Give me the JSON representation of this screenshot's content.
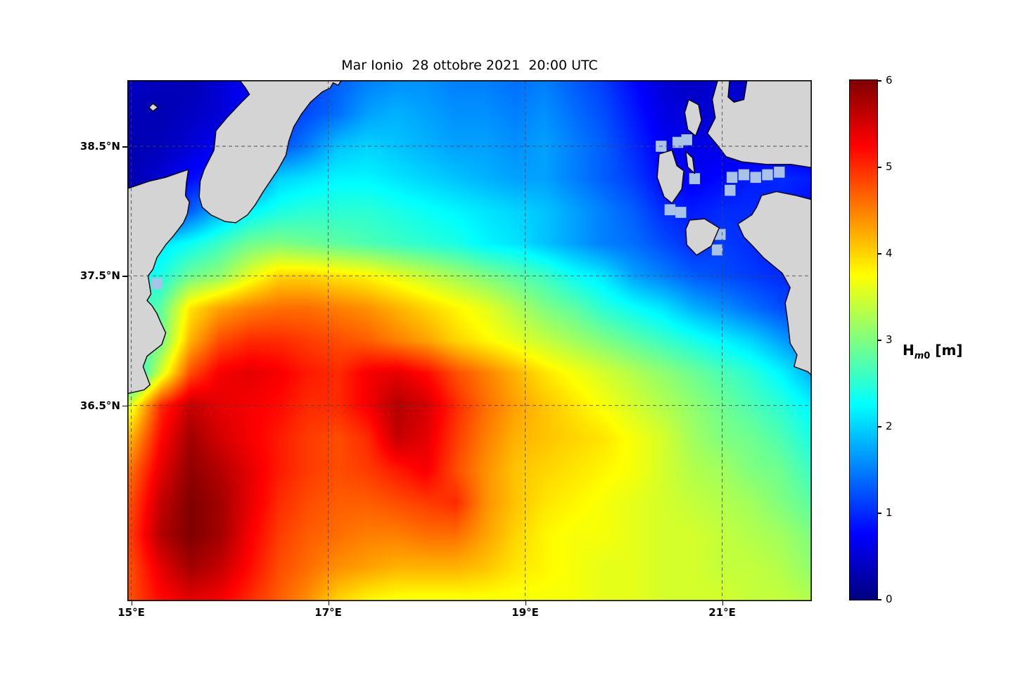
{
  "title": "Mar Ionio  28 ottobre 2021  20:00 UTC",
  "colorbar": {
    "symbol": "H",
    "sub_italic": "m",
    "sub_normal": "0",
    "unit": " [m]",
    "min": 0,
    "max": 6,
    "ticks": [
      0,
      1,
      2,
      3,
      4,
      5,
      6
    ]
  },
  "axes": {
    "x_ticks": [
      {
        "value": 15,
        "label": "15°E"
      },
      {
        "value": 17,
        "label": "17°E"
      },
      {
        "value": 19,
        "label": "19°E"
      },
      {
        "value": 21,
        "label": "21°E"
      }
    ],
    "y_ticks": [
      {
        "value": 38.5,
        "label": "38.5°N"
      },
      {
        "value": 37.5,
        "label": "37.5°N"
      },
      {
        "value": 36.5,
        "label": "36.5°N"
      }
    ],
    "lon_range": [
      14.96,
      21.91
    ],
    "lat_range": [
      39.01,
      34.99
    ],
    "grid_on": true
  },
  "chart_data": {
    "type": "heatmap",
    "title": "Mar Ionio  28 ottobre 2021  20:00 UTC",
    "variable": "Hm0",
    "units": "m",
    "colormap": "jet",
    "vmin": 0,
    "vmax": 6,
    "lon": [
      15.0,
      15.3,
      15.6,
      15.9,
      16.2,
      16.5,
      16.8,
      17.1,
      17.4,
      17.7,
      18.0,
      18.3,
      18.6,
      18.9,
      19.2,
      19.5,
      19.8,
      20.1,
      20.4,
      20.7,
      21.0,
      21.3,
      21.6,
      21.9
    ],
    "lat": [
      39.0,
      38.75,
      38.5,
      38.25,
      38.0,
      37.75,
      37.5,
      37.25,
      37.0,
      36.75,
      36.5,
      36.25,
      36.0,
      35.75,
      35.5,
      35.25,
      35.0
    ],
    "values": [
      [
        0.4,
        0.35,
        0.3,
        0.5,
        0.7,
        0.9,
        1.1,
        1.3,
        1.5,
        1.6,
        1.6,
        1.5,
        1.5,
        1.4,
        1.5,
        1.3,
        1.1,
        0.8,
        0.5,
        0.4,
        0.5,
        0.4,
        0.5,
        0.5
      ],
      [
        0.35,
        0.3,
        0.4,
        0.5,
        0.8,
        1.0,
        1.2,
        1.4,
        1.7,
        1.8,
        1.7,
        1.6,
        1.6,
        1.5,
        1.6,
        1.4,
        1.2,
        0.9,
        0.6,
        0.5,
        0.5,
        0.5,
        0.5,
        0.5
      ],
      [
        0.3,
        0.35,
        0.5,
        0.7,
        0.9,
        1.2,
        1.5,
        1.9,
        2.0,
        1.9,
        1.8,
        1.7,
        1.7,
        1.6,
        1.7,
        1.5,
        1.3,
        1.0,
        0.7,
        0.6,
        0.6,
        0.6,
        0.6,
        0.6
      ],
      [
        0.3,
        0.5,
        0.8,
        1.0,
        1.4,
        2.0,
        2.1,
        2.2,
        2.2,
        2.1,
        2.0,
        1.9,
        1.8,
        1.7,
        1.7,
        1.5,
        1.3,
        1.1,
        0.8,
        0.7,
        0.8,
        0.9,
        1.0,
        0.9
      ],
      [
        0.3,
        0.6,
        1.3,
        1.8,
        2.2,
        2.4,
        2.5,
        2.5,
        2.5,
        2.4,
        2.3,
        2.2,
        2.1,
        2.0,
        1.9,
        1.7,
        1.5,
        1.3,
        1.0,
        0.9,
        1.0,
        1.0,
        0.9,
        0.8
      ],
      [
        1.8,
        2.1,
        2.3,
        2.6,
        2.9,
        3.0,
        2.9,
        2.8,
        2.7,
        2.6,
        2.5,
        2.4,
        2.2,
        2.1,
        1.9,
        1.7,
        1.5,
        1.4,
        1.2,
        1.0,
        1.1,
        1.0,
        0.9,
        0.9
      ],
      [
        2.2,
        2.4,
        2.9,
        3.1,
        3.6,
        4.0,
        4.0,
        3.9,
        3.8,
        3.6,
        3.4,
        3.2,
        3.0,
        2.8,
        2.6,
        2.3,
        2.1,
        1.7,
        1.5,
        1.3,
        1.2,
        1.1,
        1.0,
        1.0
      ],
      [
        2.5,
        2.8,
        3.9,
        4.3,
        4.5,
        4.6,
        4.6,
        4.5,
        4.4,
        4.2,
        4.0,
        3.8,
        3.6,
        3.3,
        3.0,
        2.8,
        2.5,
        2.3,
        2.1,
        1.8,
        1.6,
        1.4,
        1.2,
        1.1
      ],
      [
        2.6,
        2.9,
        4.2,
        4.8,
        5.0,
        5.0,
        4.9,
        4.8,
        4.7,
        4.5,
        4.3,
        4.0,
        3.8,
        3.6,
        3.4,
        3.2,
        3.0,
        2.8,
        2.6,
        2.4,
        2.2,
        2.0,
        1.7,
        1.4
      ],
      [
        2.0,
        3.5,
        4.8,
        5.3,
        5.4,
        5.3,
        5.1,
        5.0,
        5.3,
        5.4,
        5.2,
        4.8,
        4.5,
        4.2,
        3.9,
        3.7,
        3.5,
        3.3,
        3.1,
        2.9,
        2.7,
        2.5,
        2.2,
        1.8
      ],
      [
        3.6,
        5.0,
        5.6,
        5.4,
        5.3,
        5.2,
        5.0,
        5.0,
        5.3,
        5.7,
        5.5,
        5.0,
        4.6,
        4.3,
        4.1,
        3.9,
        3.7,
        3.5,
        3.3,
        3.1,
        2.9,
        2.7,
        2.5,
        2.2
      ],
      [
        4.2,
        5.2,
        5.8,
        5.5,
        5.3,
        5.1,
        4.9,
        4.8,
        5.0,
        5.6,
        5.4,
        4.9,
        4.5,
        4.2,
        4.1,
        4.0,
        3.9,
        3.7,
        3.5,
        3.2,
        3.0,
        2.9,
        2.7,
        2.4
      ],
      [
        4.6,
        5.4,
        5.9,
        5.7,
        5.4,
        5.1,
        4.9,
        4.8,
        4.9,
        5.1,
        5.3,
        4.8,
        4.4,
        4.1,
        4.0,
        3.9,
        3.8,
        3.7,
        3.5,
        3.3,
        3.2,
        3.0,
        2.9,
        2.6
      ],
      [
        4.8,
        5.6,
        6.0,
        5.8,
        5.4,
        5.0,
        4.8,
        4.7,
        4.7,
        4.8,
        4.9,
        5.0,
        4.4,
        4.1,
        3.9,
        3.8,
        3.7,
        3.6,
        3.5,
        3.4,
        3.3,
        3.2,
        3.0,
        2.8
      ],
      [
        4.9,
        5.7,
        6.0,
        5.8,
        5.3,
        4.9,
        4.7,
        4.6,
        4.5,
        4.5,
        4.6,
        4.6,
        4.3,
        4.0,
        3.8,
        3.7,
        3.7,
        3.6,
        3.5,
        3.5,
        3.4,
        3.3,
        3.2,
        3.0
      ],
      [
        4.8,
        5.4,
        5.8,
        5.6,
        5.2,
        4.8,
        4.6,
        4.4,
        4.3,
        4.2,
        4.2,
        4.2,
        4.1,
        3.9,
        3.8,
        3.7,
        3.6,
        3.6,
        3.5,
        3.5,
        3.4,
        3.4,
        3.3,
        3.1
      ],
      [
        4.8,
        5.2,
        5.4,
        5.3,
        5.0,
        4.7,
        4.4,
        4.0,
        3.8,
        3.7,
        3.7,
        3.7,
        3.7,
        3.7,
        3.7,
        3.7,
        3.6,
        3.6,
        3.5,
        3.5,
        3.5,
        3.4,
        3.4,
        3.3
      ]
    ]
  },
  "land": {
    "fill": "#d4d4d4",
    "coast_color": "#000000",
    "polygons": [
      {
        "name": "sicily",
        "points": [
          [
            14.95,
            38.17
          ],
          [
            15.18,
            38.23
          ],
          [
            15.35,
            38.26
          ],
          [
            15.5,
            38.3
          ],
          [
            15.58,
            38.32
          ],
          [
            15.56,
            38.22
          ],
          [
            15.55,
            38.12
          ],
          [
            15.59,
            38.07
          ],
          [
            15.57,
            37.98
          ],
          [
            15.53,
            37.91
          ],
          [
            15.43,
            37.81
          ],
          [
            15.35,
            37.74
          ],
          [
            15.26,
            37.64
          ],
          [
            15.22,
            37.55
          ],
          [
            15.17,
            37.5
          ],
          [
            15.2,
            37.36
          ],
          [
            15.16,
            37.31
          ],
          [
            15.21,
            37.27
          ],
          [
            15.26,
            37.21
          ],
          [
            15.3,
            37.14
          ],
          [
            15.35,
            37.06
          ],
          [
            15.31,
            36.97
          ],
          [
            15.16,
            36.88
          ],
          [
            15.12,
            36.8
          ],
          [
            15.19,
            36.66
          ],
          [
            15.13,
            36.62
          ],
          [
            14.95,
            36.59
          ]
        ]
      },
      {
        "name": "calabria",
        "points": [
          [
            16.06,
            39.05
          ],
          [
            16.16,
            38.95
          ],
          [
            16.2,
            38.9
          ],
          [
            16.12,
            38.84
          ],
          [
            15.97,
            38.72
          ],
          [
            15.86,
            38.62
          ],
          [
            15.84,
            38.47
          ],
          [
            15.74,
            38.32
          ],
          [
            15.7,
            38.23
          ],
          [
            15.69,
            38.11
          ],
          [
            15.72,
            38.03
          ],
          [
            15.81,
            37.97
          ],
          [
            15.95,
            37.92
          ],
          [
            16.06,
            37.91
          ],
          [
            16.18,
            37.97
          ],
          [
            16.26,
            38.05
          ],
          [
            16.34,
            38.15
          ],
          [
            16.49,
            38.32
          ],
          [
            16.57,
            38.43
          ],
          [
            16.6,
            38.54
          ],
          [
            16.65,
            38.65
          ],
          [
            16.73,
            38.75
          ],
          [
            16.82,
            38.84
          ],
          [
            16.94,
            38.92
          ],
          [
            17.02,
            38.95
          ],
          [
            17.05,
            38.99
          ],
          [
            17.1,
            38.97
          ],
          [
            17.17,
            39.05
          ]
        ]
      },
      {
        "name": "aeolian-islet",
        "points": [
          [
            15.18,
            38.8
          ],
          [
            15.22,
            38.83
          ],
          [
            15.27,
            38.8
          ],
          [
            15.22,
            38.77
          ]
        ]
      },
      {
        "name": "epirus-akarnania",
        "points": [
          [
            20.97,
            39.05
          ],
          [
            20.9,
            38.86
          ],
          [
            20.93,
            38.72
          ],
          [
            20.85,
            38.6
          ],
          [
            20.96,
            38.5
          ],
          [
            21.04,
            38.42
          ],
          [
            21.2,
            38.38
          ],
          [
            21.45,
            38.36
          ],
          [
            21.7,
            38.36
          ],
          [
            21.95,
            38.33
          ],
          [
            21.95,
            39.05
          ],
          [
            21.26,
            39.05
          ],
          [
            21.22,
            38.86
          ],
          [
            21.12,
            38.84
          ],
          [
            21.06,
            38.88
          ],
          [
            21.08,
            39.05
          ]
        ]
      },
      {
        "name": "lefkada",
        "points": [
          [
            20.66,
            38.86
          ],
          [
            20.76,
            38.82
          ],
          [
            20.79,
            38.7
          ],
          [
            20.73,
            38.58
          ],
          [
            20.65,
            38.63
          ],
          [
            20.62,
            38.76
          ]
        ]
      },
      {
        "name": "kefalonia",
        "points": [
          [
            20.36,
            38.44
          ],
          [
            20.49,
            38.47
          ],
          [
            20.54,
            38.35
          ],
          [
            20.61,
            38.31
          ],
          [
            20.59,
            38.17
          ],
          [
            20.49,
            38.06
          ],
          [
            20.41,
            38.11
          ],
          [
            20.34,
            38.26
          ]
        ]
      },
      {
        "name": "ithaca",
        "points": [
          [
            20.63,
            38.46
          ],
          [
            20.7,
            38.41
          ],
          [
            20.72,
            38.29
          ],
          [
            20.65,
            38.34
          ]
        ]
      },
      {
        "name": "zakynthos",
        "points": [
          [
            20.67,
            37.93
          ],
          [
            20.82,
            37.94
          ],
          [
            20.97,
            37.87
          ],
          [
            20.89,
            37.73
          ],
          [
            20.74,
            37.66
          ],
          [
            20.64,
            37.74
          ],
          [
            20.63,
            37.86
          ]
        ]
      },
      {
        "name": "peloponnese",
        "points": [
          [
            21.95,
            38.08
          ],
          [
            21.75,
            38.12
          ],
          [
            21.55,
            38.15
          ],
          [
            21.4,
            38.12
          ],
          [
            21.35,
            38.03
          ],
          [
            21.3,
            37.97
          ],
          [
            21.16,
            37.9
          ],
          [
            21.22,
            37.8
          ],
          [
            21.31,
            37.73
          ],
          [
            21.42,
            37.64
          ],
          [
            21.61,
            37.52
          ],
          [
            21.69,
            37.41
          ],
          [
            21.64,
            37.29
          ],
          [
            21.67,
            37.12
          ],
          [
            21.69,
            36.98
          ],
          [
            21.76,
            36.89
          ],
          [
            21.73,
            36.8
          ],
          [
            21.87,
            36.76
          ],
          [
            21.95,
            36.7
          ]
        ]
      }
    ]
  },
  "mask_cells": {
    "color": "#a9c3e6",
    "cell_w": 0.11,
    "cell_h": 0.085,
    "centers": [
      [
        21.1,
        38.26
      ],
      [
        21.22,
        38.28
      ],
      [
        21.34,
        38.26
      ],
      [
        21.46,
        38.28
      ],
      [
        21.08,
        38.16
      ],
      [
        21.58,
        38.3
      ],
      [
        20.55,
        38.53
      ],
      [
        20.64,
        38.55
      ],
      [
        20.38,
        38.5
      ],
      [
        20.47,
        38.01
      ],
      [
        20.58,
        37.99
      ],
      [
        20.98,
        37.82
      ],
      [
        20.95,
        37.7
      ],
      [
        20.72,
        38.25
      ],
      [
        16.22,
        38.38
      ],
      [
        16.3,
        38.32
      ],
      [
        15.26,
        37.44
      ]
    ]
  },
  "style": {
    "grid_color": "#444444",
    "border_color": "#000000",
    "background": "#ffffff"
  }
}
